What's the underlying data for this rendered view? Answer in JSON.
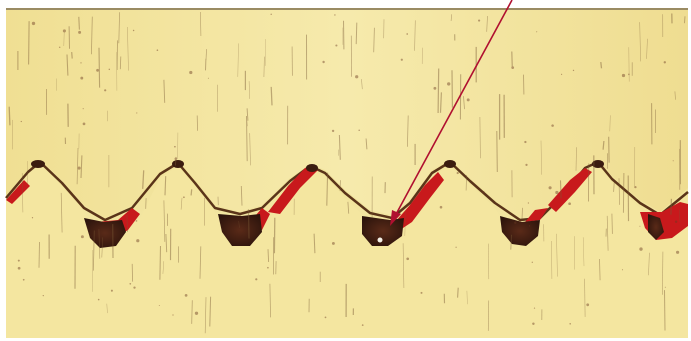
{
  "image": {
    "subject": "micrograph-cross-section",
    "colors": {
      "background": "#ffffff",
      "material_light": "#f6eaa8",
      "material_mid": "#e9d98a",
      "material_warm": "#e6cf7a",
      "edge_shadow": "#8b5a2b",
      "dark_deposit": "#3a1d12",
      "red_layer": "#c91a1a",
      "arrow": "#b01030",
      "speck": "#6b3a22"
    },
    "annotations": [
      {
        "type": "arrow",
        "target": "deposit-in-valley-3"
      }
    ]
  }
}
